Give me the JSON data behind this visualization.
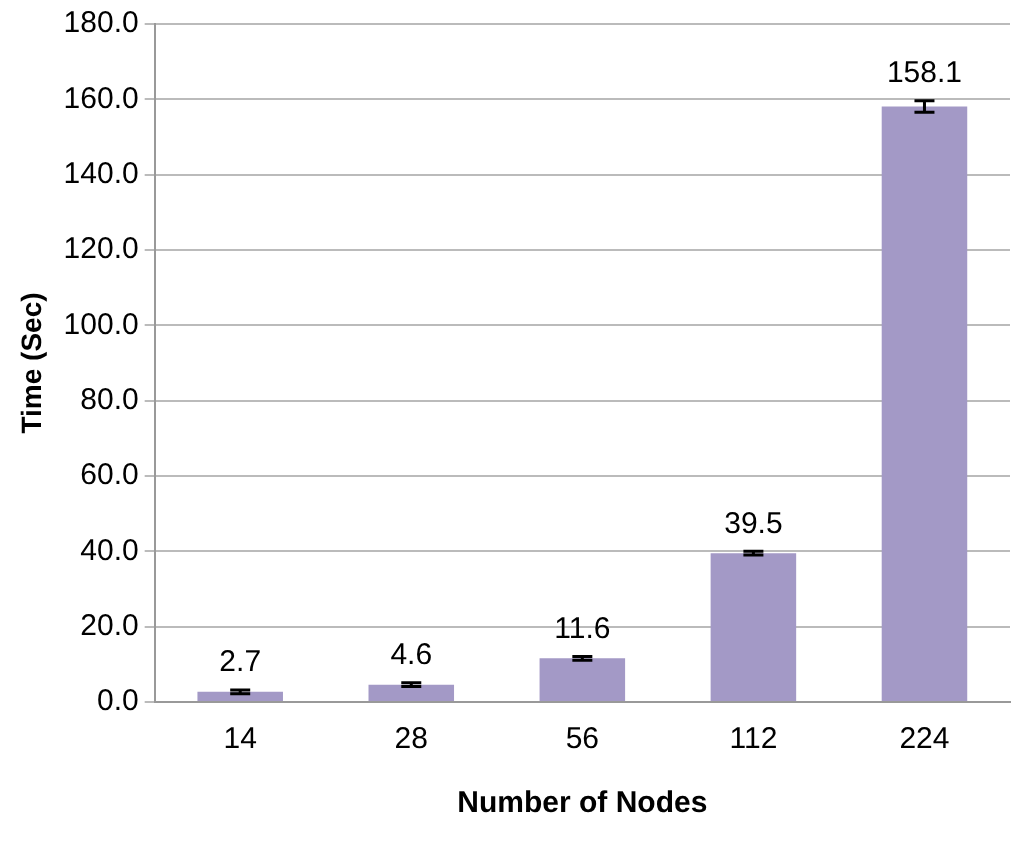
{
  "chart_data": {
    "type": "bar",
    "xlabel": "Number of Nodes",
    "ylabel": "Time (Sec)",
    "categories": [
      "14",
      "28",
      "56",
      "112",
      "224"
    ],
    "values": [
      2.7,
      4.6,
      11.6,
      39.5,
      158.1
    ],
    "errors": [
      0.5,
      0.5,
      0.5,
      0.5,
      1.5
    ],
    "color": "#a399c6",
    "ylim": [
      0,
      180
    ],
    "yticks": [
      {
        "value": 0,
        "label": "0.0"
      },
      {
        "value": 20,
        "label": "20.0"
      },
      {
        "value": 40,
        "label": "40.0"
      },
      {
        "value": 60,
        "label": "60.0"
      },
      {
        "value": 80,
        "label": "80.0"
      },
      {
        "value": 100,
        "label": "100.0"
      },
      {
        "value": 120,
        "label": "120.0"
      },
      {
        "value": 140,
        "label": "140.0"
      },
      {
        "value": 160,
        "label": "160.0"
      },
      {
        "value": 180,
        "label": "180.0"
      }
    ],
    "grid": "y",
    "data_labels": true
  }
}
